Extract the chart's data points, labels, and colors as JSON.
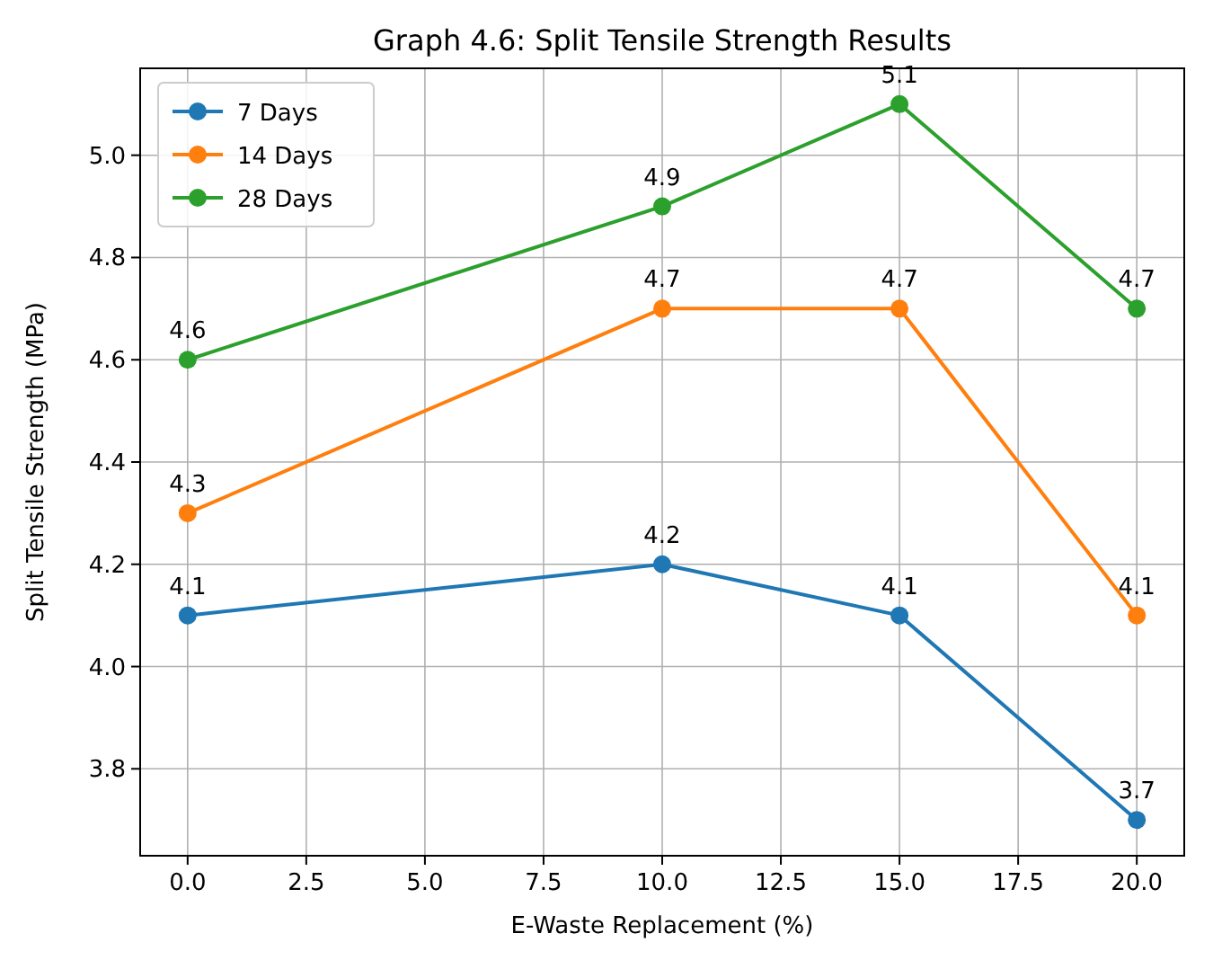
{
  "chart_data": {
    "type": "line",
    "title": "Graph 4.6: Split Tensile Strength Results",
    "xlabel": "E-Waste Replacement (%)",
    "ylabel": "Split Tensile Strength (MPa)",
    "x": [
      0,
      10,
      15,
      20
    ],
    "series": [
      {
        "name": "7 Days",
        "color": "#1f77b4",
        "values": [
          4.1,
          4.2,
          4.1,
          3.7
        ]
      },
      {
        "name": "14 Days",
        "color": "#ff7f0e",
        "values": [
          4.3,
          4.7,
          4.7,
          4.1
        ]
      },
      {
        "name": "28 Days",
        "color": "#2ca02c",
        "values": [
          4.6,
          4.9,
          5.1,
          4.7
        ]
      }
    ],
    "xlim": [
      -1,
      21
    ],
    "xticks": [
      {
        "value": 0,
        "label": "0.0"
      },
      {
        "value": 2.5,
        "label": "2.5"
      },
      {
        "value": 5,
        "label": "5.0"
      },
      {
        "value": 7.5,
        "label": "7.5"
      },
      {
        "value": 10,
        "label": "10.0"
      },
      {
        "value": 12.5,
        "label": "12.5"
      },
      {
        "value": 15,
        "label": "15.0"
      },
      {
        "value": 17.5,
        "label": "17.5"
      },
      {
        "value": 20,
        "label": "20.0"
      }
    ],
    "ylim": [
      3.63,
      5.17
    ],
    "yticks": [
      {
        "value": 3.8,
        "label": "3.8"
      },
      {
        "value": 4,
        "label": "4.0"
      },
      {
        "value": 4.2,
        "label": "4.2"
      },
      {
        "value": 4.4,
        "label": "4.4"
      },
      {
        "value": 4.6,
        "label": "4.6"
      },
      {
        "value": 4.8,
        "label": "4.8"
      },
      {
        "value": 5,
        "label": "5.0"
      }
    ],
    "grid": true,
    "legend": "top left",
    "marker": "circle",
    "line_style": "solid",
    "data_labels": true
  }
}
